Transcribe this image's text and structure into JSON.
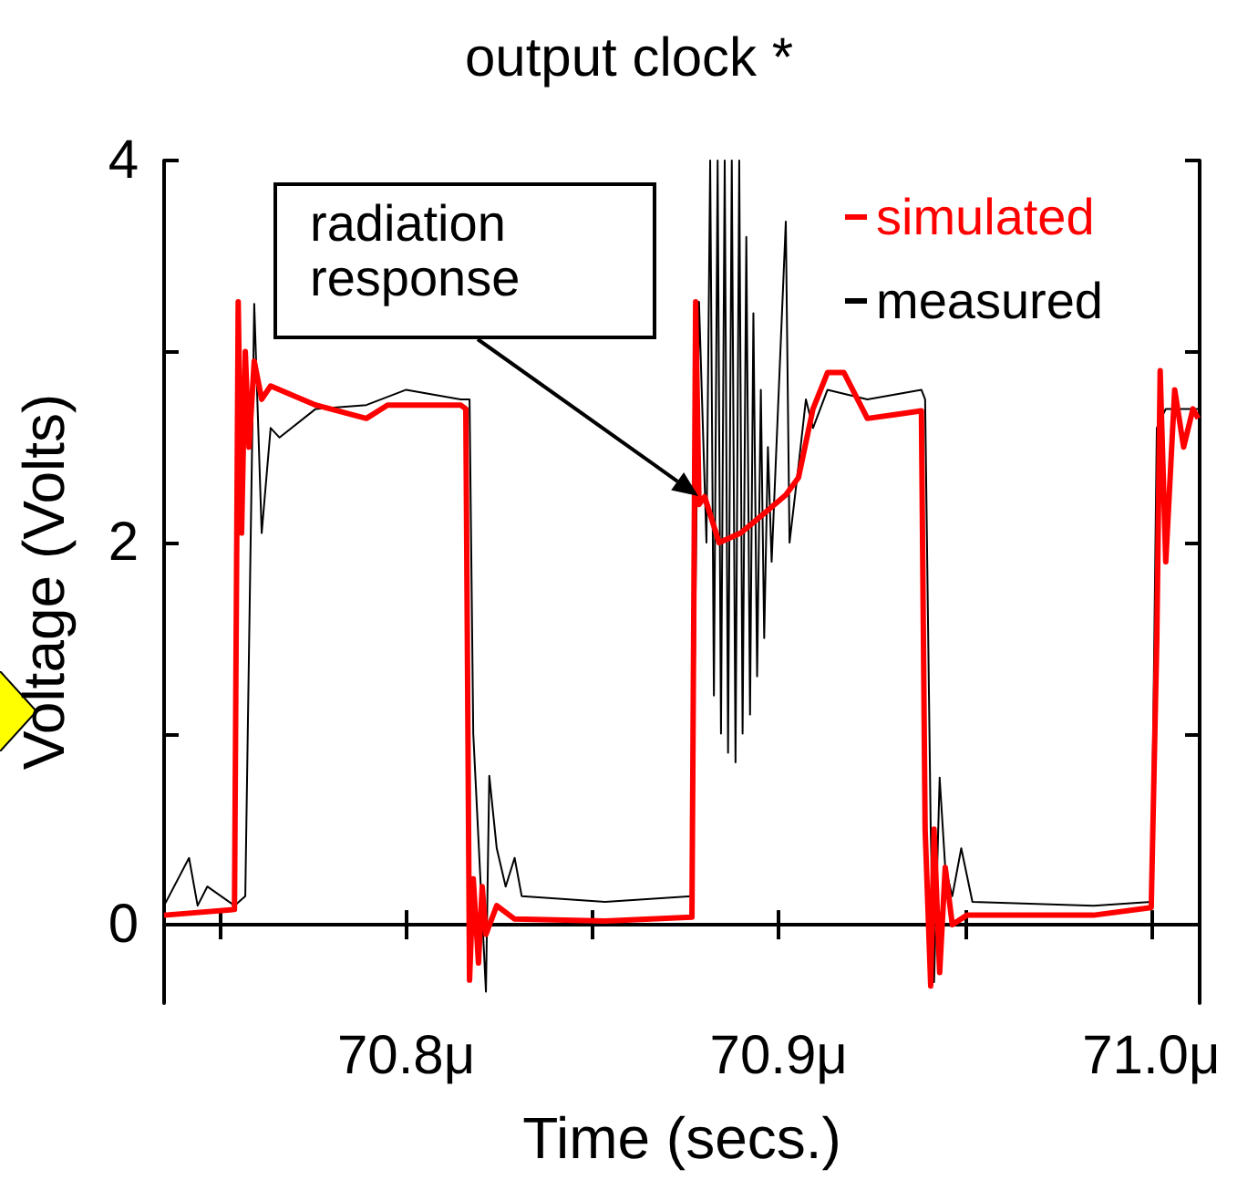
{
  "chart_data": {
    "type": "line",
    "title": "output clock *",
    "xlabel": "Time (secs.)",
    "ylabel": "Voltage (Volts)",
    "annotations": [
      "radiation\nresponse"
    ],
    "xlim": [
      70.735,
      71.013
    ],
    "xticks": [
      {
        "value": 70.75,
        "label": null
      },
      {
        "value": 70.8,
        "label": "70.8μ"
      },
      {
        "value": 70.85,
        "label": null
      },
      {
        "value": 70.9,
        "label": "70.9μ"
      },
      {
        "value": 70.95,
        "label": null
      },
      {
        "value": 71.0,
        "label": "71.0μ"
      }
    ],
    "ylim": [
      -0.41,
      4
    ],
    "yticks": [
      0,
      {
        "value": 1,
        "label": null
      },
      2,
      {
        "value": 3,
        "label": null
      },
      4
    ],
    "grid": false,
    "legend": "top right",
    "marker": "none",
    "line_style": "solid",
    "series": [
      {
        "name": "simulated",
        "color": "#ff0000",
        "x": [
          70.735,
          70.7539,
          70.7549,
          70.7558,
          70.7568,
          70.7578,
          70.7592,
          70.7612,
          70.7636,
          70.7757,
          70.7893,
          70.795,
          70.8146,
          70.816,
          70.817,
          70.818,
          70.8194,
          70.8204,
          70.8214,
          70.8243,
          70.8291,
          70.8534,
          70.8767,
          70.8777,
          70.8786,
          70.8801,
          70.884,
          70.8898,
          70.8971,
          70.9019,
          70.9053,
          70.9092,
          70.9131,
          70.9175,
          70.9238,
          70.9311,
          70.9383,
          70.9393,
          70.9408,
          70.9417,
          70.9432,
          70.9447,
          70.9466,
          70.9505,
          70.9845,
          71.0,
          71.0015,
          71.0024,
          71.0039,
          71.0063,
          71.0087,
          71.0112,
          71.0126
        ],
        "values": [
          0.05,
          0.08,
          3.26,
          2.05,
          3.0,
          2.5,
          2.95,
          2.75,
          2.82,
          2.72,
          2.65,
          2.72,
          2.72,
          2.7,
          -0.29,
          0.24,
          -0.2,
          0.2,
          -0.05,
          0.1,
          0.03,
          0.02,
          0.04,
          3.26,
          2.2,
          2.24,
          2.0,
          2.05,
          2.17,
          2.25,
          2.34,
          2.7,
          2.89,
          2.89,
          2.65,
          2.67,
          2.69,
          0.5,
          -0.32,
          0.5,
          -0.25,
          0.3,
          0.0,
          0.05,
          0.05,
          0.09,
          1.5,
          2.9,
          1.9,
          2.8,
          2.5,
          2.7,
          2.65
        ]
      },
      {
        "name": "measured",
        "color": "#000000",
        "x": [
          70.735,
          70.7417,
          70.744,
          70.7466,
          70.7539,
          70.7568,
          70.7592,
          70.7612,
          70.7636,
          70.766,
          70.7757,
          70.7893,
          70.8,
          70.8146,
          70.817,
          70.818,
          70.8214,
          70.8223,
          70.8243,
          70.8267,
          70.8291,
          70.831,
          70.8534,
          70.8767,
          70.8786,
          70.8806,
          70.8816,
          70.8826,
          70.8836,
          70.8845,
          70.8855,
          70.8864,
          70.8874,
          70.8884,
          70.8894,
          70.8903,
          70.8913,
          70.8923,
          70.8932,
          70.8942,
          70.8952,
          70.8961,
          70.8971,
          70.8981,
          70.9019,
          70.9029,
          70.9053,
          70.9073,
          70.9092,
          70.9131,
          70.9238,
          70.9383,
          70.9393,
          70.9408,
          70.9417,
          70.9432,
          70.9447,
          70.9466,
          70.949,
          70.952,
          70.9845,
          71.0,
          71.0015,
          71.0039,
          71.0126
        ],
        "values": [
          0.1,
          0.35,
          0.1,
          0.2,
          0.1,
          0.15,
          3.25,
          2.05,
          2.6,
          2.55,
          2.7,
          2.72,
          2.8,
          2.75,
          2.75,
          1.0,
          -0.35,
          0.78,
          0.4,
          0.2,
          0.35,
          0.15,
          0.12,
          0.15,
          3.26,
          2.0,
          4.0,
          1.2,
          4.0,
          1.0,
          4.0,
          0.9,
          4.0,
          0.85,
          4.0,
          1.0,
          3.6,
          1.1,
          3.2,
          1.3,
          2.8,
          1.5,
          2.5,
          1.9,
          3.68,
          2.0,
          2.4,
          2.75,
          2.6,
          2.8,
          2.75,
          2.8,
          2.75,
          0.5,
          -0.3,
          0.77,
          0.3,
          0.15,
          0.4,
          0.12,
          0.1,
          0.12,
          2.6,
          2.7,
          2.7
        ]
      }
    ]
  }
}
